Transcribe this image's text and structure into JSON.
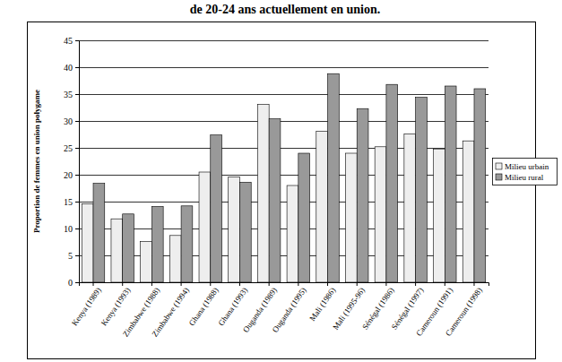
{
  "chart_data": {
    "type": "bar",
    "title": "de 20-24 ans actuellement en union.",
    "y_label": "Proportion de femmes en union polygame",
    "categories": [
      "Kenya (1989)",
      "Kenya (1993)",
      "Zimbabwe (1988)",
      "Zimbabwe (1994)",
      "Ghana (1988)",
      "Ghana (1993)",
      "Ouganda (1989)",
      "Ouganda (1995)",
      "Mali (1986)",
      "Mali (1995-96)",
      "Sénégal (1986)",
      "Sénégal (1997)",
      "Cameroun (1991)",
      "Cameroun (1998)"
    ],
    "series": [
      {
        "name": "Milieu urbain",
        "color": "#eeeeee",
        "values": [
          14.6,
          11.8,
          7.6,
          8.7,
          20.5,
          19.6,
          33.1,
          18.0,
          28.1,
          24.0,
          25.2,
          27.6,
          24.8,
          26.3
        ]
      },
      {
        "name": "Milieu rural",
        "color": "#999999",
        "values": [
          18.4,
          12.7,
          14.1,
          14.2,
          27.4,
          18.6,
          30.4,
          24.0,
          38.8,
          32.3,
          36.8,
          34.4,
          36.5,
          36.0
        ]
      }
    ],
    "ylim": [
      0,
      45
    ],
    "yticks": [
      0,
      5,
      10,
      15,
      20,
      25,
      30,
      35,
      40,
      45
    ],
    "grid": true,
    "legend": "right"
  }
}
